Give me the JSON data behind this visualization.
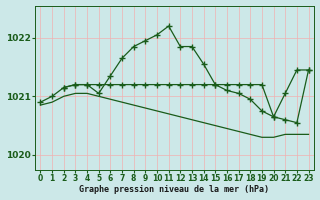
{
  "title": "Graphe pression niveau de la mer (hPa)",
  "bg_color": "#cce8e8",
  "grid_color": "#b0d8d8",
  "line_color": "#1a5c1a",
  "xlim": [
    -0.5,
    23.5
  ],
  "ylim": [
    1019.75,
    1022.55
  ],
  "yticks": [
    1020,
    1021,
    1022
  ],
  "xticks": [
    0,
    1,
    2,
    3,
    4,
    5,
    6,
    7,
    8,
    9,
    10,
    11,
    12,
    13,
    14,
    15,
    16,
    17,
    18,
    19,
    20,
    21,
    22,
    23
  ],
  "series1_x": [
    2,
    3,
    4,
    5,
    6,
    7,
    8,
    9,
    10,
    11,
    12,
    13,
    14,
    15,
    16,
    17,
    18,
    19,
    20,
    21,
    22,
    23
  ],
  "series1_y": [
    1021.15,
    1021.2,
    1021.2,
    1021.05,
    1021.35,
    1021.65,
    1021.85,
    1021.95,
    1022.05,
    1022.2,
    1021.85,
    1021.85,
    1021.55,
    1021.2,
    1021.1,
    1021.05,
    1020.95,
    1020.75,
    1020.65,
    1020.6,
    1020.55,
    1021.45
  ],
  "series2_x": [
    0,
    1,
    2,
    3,
    4,
    5,
    6,
    7,
    8,
    9,
    10,
    11,
    12,
    13,
    14,
    15,
    16,
    17,
    18,
    19,
    20,
    21,
    22,
    23
  ],
  "series2_y": [
    1020.9,
    1021.0,
    1021.15,
    1021.2,
    1021.2,
    1021.2,
    1021.2,
    1021.2,
    1021.2,
    1021.2,
    1021.2,
    1021.2,
    1021.2,
    1021.2,
    1021.2,
    1021.2,
    1021.2,
    1021.2,
    1021.2,
    1021.2,
    1020.65,
    1021.05,
    1021.45,
    1021.45
  ],
  "series3_x": [
    0,
    1,
    2,
    3,
    4,
    5,
    6,
    7,
    8,
    9,
    10,
    11,
    12,
    13,
    14,
    15,
    16,
    17,
    18,
    19,
    20,
    21,
    22,
    23
  ],
  "series3_y": [
    1020.85,
    1020.9,
    1021.0,
    1021.05,
    1021.05,
    1021.0,
    1020.95,
    1020.9,
    1020.85,
    1020.8,
    1020.75,
    1020.7,
    1020.65,
    1020.6,
    1020.55,
    1020.5,
    1020.45,
    1020.4,
    1020.35,
    1020.3,
    1020.3,
    1020.35,
    1020.35,
    1020.35
  ]
}
